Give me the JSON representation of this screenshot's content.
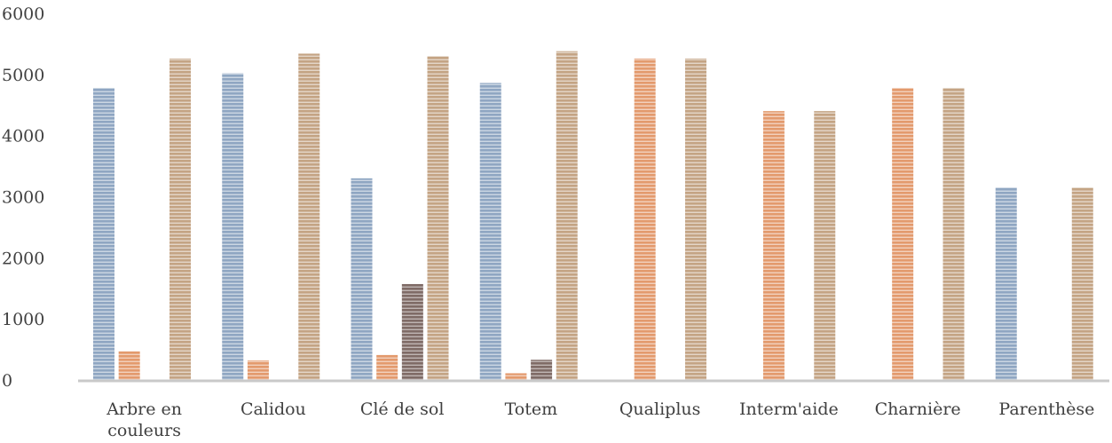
{
  "chart_data": {
    "type": "bar",
    "title": "",
    "xlabel": "",
    "ylabel": "",
    "ylim": [
      0,
      6000
    ],
    "yticks": [
      0,
      1000,
      2000,
      3000,
      4000,
      5000,
      6000
    ],
    "grid": false,
    "legend": "none",
    "categories": [
      [
        "Arbre en",
        "couleurs"
      ],
      [
        "Calidou"
      ],
      [
        "Clé de sol"
      ],
      [
        "Totem"
      ],
      [
        "Qualiplus"
      ],
      [
        "Interm'aide"
      ],
      [
        "Charnière"
      ],
      [
        "Parenthèse"
      ]
    ],
    "series": [
      {
        "color": "#8fa6c2",
        "values": [
          4780,
          5020,
          3300,
          4860,
          0,
          0,
          0,
          3150
        ]
      },
      {
        "color": "#e39a6d",
        "values": [
          470,
          320,
          410,
          110,
          5260,
          4400,
          4780,
          0
        ]
      },
      {
        "color": "#7f6b66",
        "values": [
          0,
          0,
          1570,
          330,
          0,
          0,
          0,
          0
        ]
      },
      {
        "color": "#c4a484",
        "values": [
          5260,
          5340,
          5300,
          5380,
          5260,
          4400,
          4780,
          3150
        ]
      }
    ]
  }
}
